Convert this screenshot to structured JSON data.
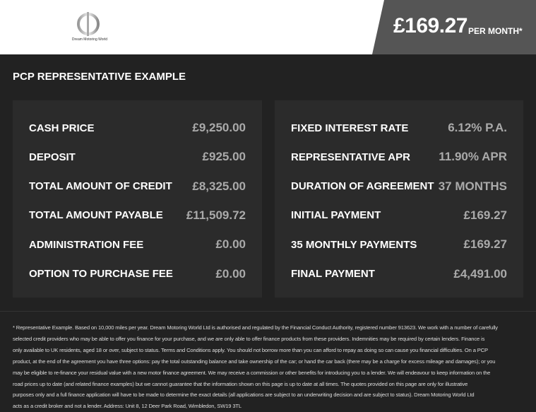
{
  "header": {
    "logo_text": "Dream Motoring World",
    "price": "£169.27",
    "per_month": "PER MONTH*"
  },
  "title": "PCP REPRESENTATIVE EXAMPLE",
  "left": [
    {
      "label": "CASH PRICE",
      "value": "£9,250.00"
    },
    {
      "label": "DEPOSIT",
      "value": "£925.00"
    },
    {
      "label": "TOTAL AMOUNT OF CREDIT",
      "value": "£8,325.00"
    },
    {
      "label": "TOTAL AMOUNT PAYABLE",
      "value": "£11,509.72"
    },
    {
      "label": "ADMINISTRATION FEE",
      "value": "£0.00"
    },
    {
      "label": "OPTION TO PURCHASE FEE",
      "value": "£0.00"
    }
  ],
  "right": [
    {
      "label": "FIXED INTEREST RATE",
      "value": "6.12% P.A."
    },
    {
      "label": "REPRESENTATIVE APR",
      "value": "11.90% APR"
    },
    {
      "label": "DURATION OF AGREEMENT",
      "value": "37 MONTHS"
    },
    {
      "label": "INITIAL PAYMENT",
      "value": "£169.27"
    },
    {
      "label": "35 MONTHLY PAYMENTS",
      "value": "£169.27"
    },
    {
      "label": "FINAL PAYMENT",
      "value": "£4,491.00"
    }
  ],
  "disclaimer": [
    "* Representative Example. Based on 10,000 miles per year. Dream Motoring World Ltd is authorised and regulated by the Financial Conduct Authority, registered number 913623. We work with a number of carefully",
    "selected credit providers who may be able to offer you finance for your purchase, and we are only able to offer finance products from these providers. Indemnities may be required by certain lenders. Finance is",
    "only available to UK residents, aged 18 or over, subject to status. Terms and Conditions apply. You should not borrow more than you can afford to repay as doing so can cause you financial difficulties. On a PCP",
    "product, at the end of the agreement you have three options: pay the total outstanding balance and take ownership of the car; or hand the car back (there may be a charge for excess mileage and damages); or you",
    "may be eligible to re-finance your residual value with a new motor finance agreement. We may receive a commission or other benefits for introducing you to a lender. We will endeavour to keep information on the",
    "road prices up to date (and related finance examples) but we cannot guarantee that the information shown on this page is up to date at all times. The quotes provided on this page are only for illustrative",
    "purposes only and a full finance application will have to be made to determine the exact details (all applications are subject to an underwriting decision and are subject to status). Dream Motoring World Ltd",
    "acts as a credit broker and not a lender. Address: Unit 8, 12 Deer Park Road, Wimbledon, SW19 3TL"
  ]
}
